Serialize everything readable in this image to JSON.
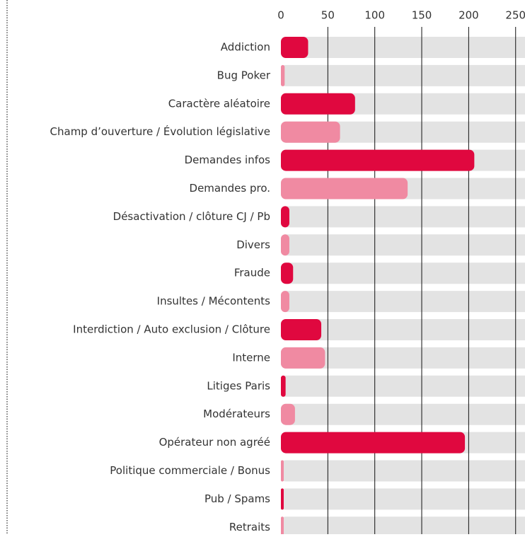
{
  "chart_data": {
    "type": "barh",
    "categories": [
      "Addiction",
      "Bug Poker",
      "Caractère aléatoire",
      "Champ d’ouverture / Évolution législative",
      "Demandes infos",
      "Demandes pro.",
      "Désactivation / clôture CJ / Pb",
      "Divers",
      "Fraude",
      "Insultes / Mécontents",
      "Interdiction / Auto exclusion / Clôture",
      "Interne",
      "Litiges Paris",
      "Modérateurs",
      "Opérateur non agréé",
      "Politique commerciale / Bonus",
      "Pub / Spams",
      "Retraits"
    ],
    "values": [
      29,
      4,
      79,
      63,
      206,
      135,
      9,
      9,
      13,
      9,
      43,
      47,
      5,
      15,
      196,
      3,
      3,
      3
    ],
    "colors": [
      "#e0083f",
      "#f08aa2"
    ],
    "xlim": [
      0,
      260
    ],
    "xticks": [
      0,
      50,
      100,
      150,
      200,
      250
    ],
    "grid": true
  }
}
